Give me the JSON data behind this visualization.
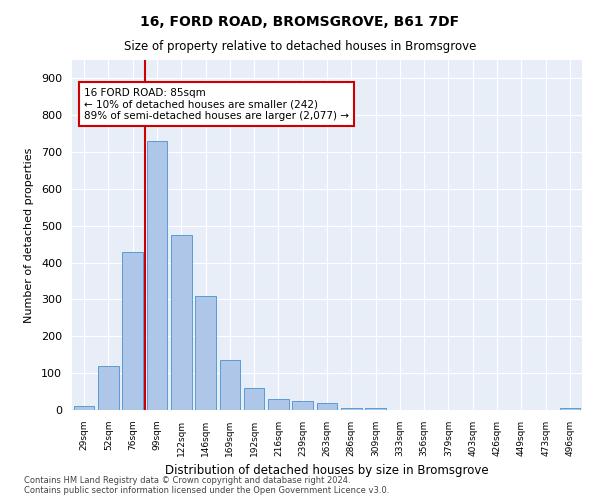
{
  "title": "16, FORD ROAD, BROMSGROVE, B61 7DF",
  "subtitle": "Size of property relative to detached houses in Bromsgrove",
  "xlabel": "Distribution of detached houses by size in Bromsgrove",
  "ylabel": "Number of detached properties",
  "categories": [
    "29sqm",
    "52sqm",
    "76sqm",
    "99sqm",
    "122sqm",
    "146sqm",
    "169sqm",
    "192sqm",
    "216sqm",
    "239sqm",
    "263sqm",
    "286sqm",
    "309sqm",
    "333sqm",
    "356sqm",
    "379sqm",
    "403sqm",
    "426sqm",
    "449sqm",
    "473sqm",
    "496sqm"
  ],
  "values": [
    10,
    120,
    430,
    730,
    475,
    310,
    135,
    60,
    30,
    25,
    20,
    5,
    5,
    0,
    0,
    0,
    0,
    0,
    0,
    0,
    5
  ],
  "bar_color": "#aec6e8",
  "bar_edge_color": "#5b9bd5",
  "vertical_line_color": "#cc0000",
  "annotation_text": "16 FORD ROAD: 85sqm\n← 10% of detached houses are smaller (242)\n89% of semi-detached houses are larger (2,077) →",
  "annotation_box_color": "#ffffff",
  "annotation_box_edge_color": "#cc0000",
  "footnote": "Contains HM Land Registry data © Crown copyright and database right 2024.\nContains public sector information licensed under the Open Government Licence v3.0.",
  "background_color": "#e8eef8",
  "ylim": [
    0,
    950
  ],
  "yticks": [
    0,
    100,
    200,
    300,
    400,
    500,
    600,
    700,
    800,
    900
  ]
}
